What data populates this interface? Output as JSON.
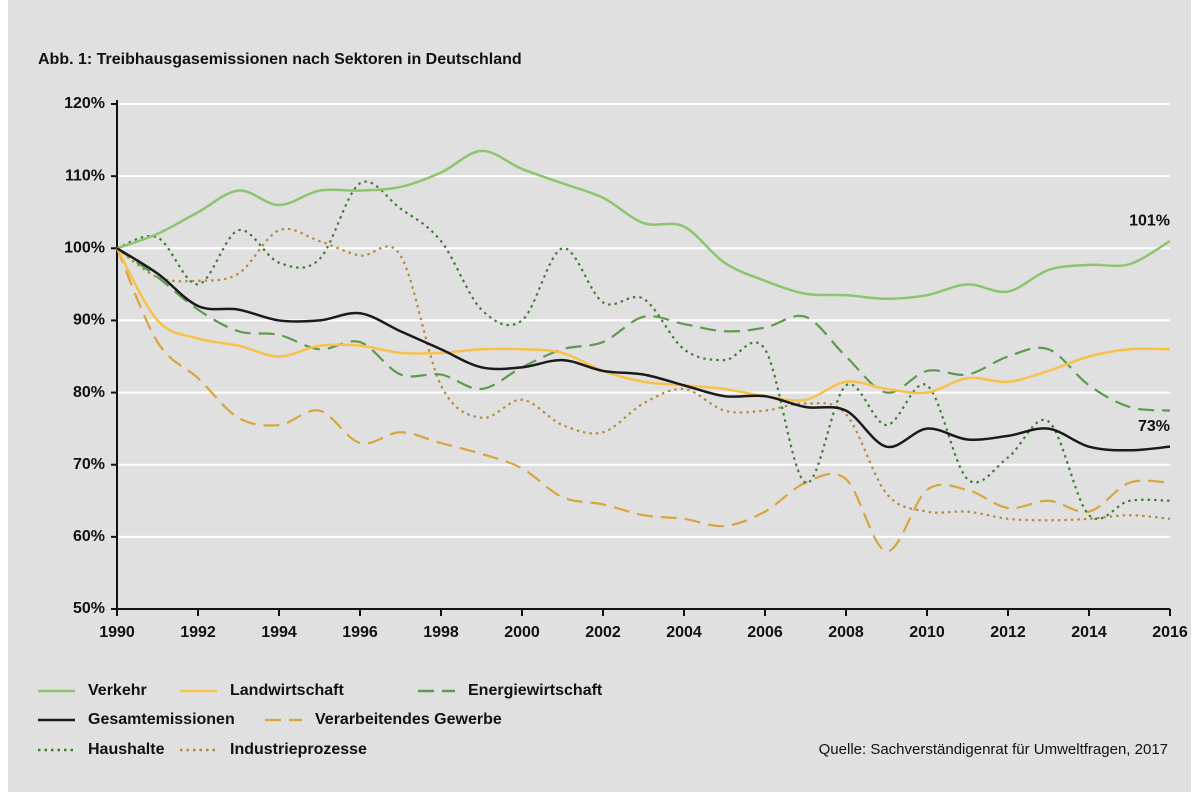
{
  "chart_data": {
    "type": "line",
    "title": "Abb. 1: Treibhausgasemissionen nach Sektoren in Deutschland",
    "source": "Quelle: Sachverständigenrat für Umweltfragen, 2017",
    "x": [
      1990,
      1991,
      1992,
      1993,
      1994,
      1995,
      1996,
      1997,
      1998,
      1999,
      2000,
      2001,
      2002,
      2003,
      2004,
      2005,
      2006,
      2007,
      2008,
      2009,
      2010,
      2011,
      2012,
      2013,
      2014,
      2015,
      2016
    ],
    "xlim": [
      1990,
      2016
    ],
    "xticks": [
      1990,
      1992,
      1994,
      1996,
      1998,
      2000,
      2002,
      2004,
      2006,
      2008,
      2010,
      2012,
      2014,
      2016
    ],
    "ylim": [
      50,
      120
    ],
    "yticks": [
      {
        "value": 50,
        "label": "50%"
      },
      {
        "value": 60,
        "label": "60%"
      },
      {
        "value": 70,
        "label": "70%"
      },
      {
        "value": 80,
        "label": "80%"
      },
      {
        "value": 90,
        "label": "90%"
      },
      {
        "value": 100,
        "label": "100%"
      },
      {
        "value": 110,
        "label": "110%"
      },
      {
        "value": 120,
        "label": "120%"
      }
    ],
    "grid": true,
    "series": [
      {
        "name": "Verkehr",
        "color": "#8cc56e",
        "dash": "solid",
        "values": [
          100,
          102,
          105,
          108,
          106,
          108,
          108,
          108.5,
          110.5,
          113.5,
          111,
          109,
          107,
          103.5,
          103,
          98,
          95.5,
          93.7,
          93.5,
          93,
          93.5,
          95,
          94,
          97,
          97.7,
          97.8,
          101
        ],
        "value_labels": [
          null,
          null,
          null,
          null,
          null,
          null,
          null,
          null,
          null,
          null,
          null,
          null,
          null,
          null,
          null,
          null,
          null,
          null,
          null,
          null,
          null,
          null,
          null,
          null,
          null,
          null,
          "101%"
        ]
      },
      {
        "name": "Landwirtschaft",
        "color": "#f7c14a",
        "dash": "solid",
        "values": [
          100,
          90,
          87.5,
          86.5,
          85,
          86.5,
          86.5,
          85.5,
          85.5,
          86,
          86,
          85.5,
          83,
          81.5,
          81,
          80.5,
          79.5,
          79,
          81.5,
          80.5,
          80,
          82,
          81.5,
          83,
          85,
          86,
          86
        ]
      },
      {
        "name": "Energiewirtschaft",
        "color": "#5e9a4e",
        "dash": "dashed",
        "values": [
          100,
          96,
          91.5,
          88.5,
          88,
          86,
          87,
          82.5,
          82.5,
          80.5,
          83.5,
          86,
          87,
          90.5,
          89.5,
          88.5,
          89,
          90.5,
          85,
          80,
          83,
          82.5,
          85,
          86,
          81,
          78,
          77.5
        ]
      },
      {
        "name": "Gesamtemissionen",
        "color": "#1a1a1a",
        "dash": "solid",
        "values": [
          100,
          96.5,
          92,
          91.5,
          90,
          90,
          91,
          88.5,
          86,
          83.5,
          83.5,
          84.5,
          83,
          82.5,
          81,
          79.5,
          79.5,
          78,
          77.5,
          72.5,
          75,
          73.5,
          74,
          75,
          72.5,
          72,
          72.5
        ],
        "value_labels": [
          null,
          null,
          null,
          null,
          null,
          null,
          null,
          null,
          null,
          null,
          null,
          null,
          null,
          null,
          null,
          null,
          null,
          null,
          null,
          null,
          null,
          null,
          null,
          null,
          null,
          null,
          "73%"
        ]
      },
      {
        "name": "Verarbeitendes Gewerbe",
        "color": "#d7a53c",
        "dash": "dashed",
        "values": [
          100,
          87,
          82,
          76.5,
          75.5,
          77.5,
          73,
          74.5,
          73,
          71.5,
          69.5,
          65.5,
          64.5,
          63,
          62.5,
          61.5,
          63.5,
          67.5,
          68,
          58,
          66.5,
          66.5,
          64,
          65,
          63.5,
          67.5,
          67.5
        ]
      },
      {
        "name": "Haushalte",
        "color": "#3f7d35",
        "dash": "dotted",
        "values": [
          100,
          101.5,
          95,
          102.5,
          98,
          98.5,
          109,
          105.5,
          101,
          91.5,
          90,
          100,
          92.5,
          93,
          86,
          84.5,
          86,
          67.5,
          81,
          75.5,
          81,
          68,
          71,
          76,
          63,
          65,
          65
        ]
      },
      {
        "name": "Industrieprozesse",
        "color": "#b18c3c",
        "dash": "dotted",
        "values": [
          100,
          96,
          95.5,
          96.5,
          102.5,
          101,
          99,
          99,
          81,
          76.5,
          79,
          75.5,
          74.5,
          78.5,
          80.5,
          77.5,
          77.5,
          78.5,
          77,
          66,
          63.5,
          63.5,
          62.5,
          62.3,
          62.5,
          63,
          62.5
        ]
      }
    ]
  }
}
